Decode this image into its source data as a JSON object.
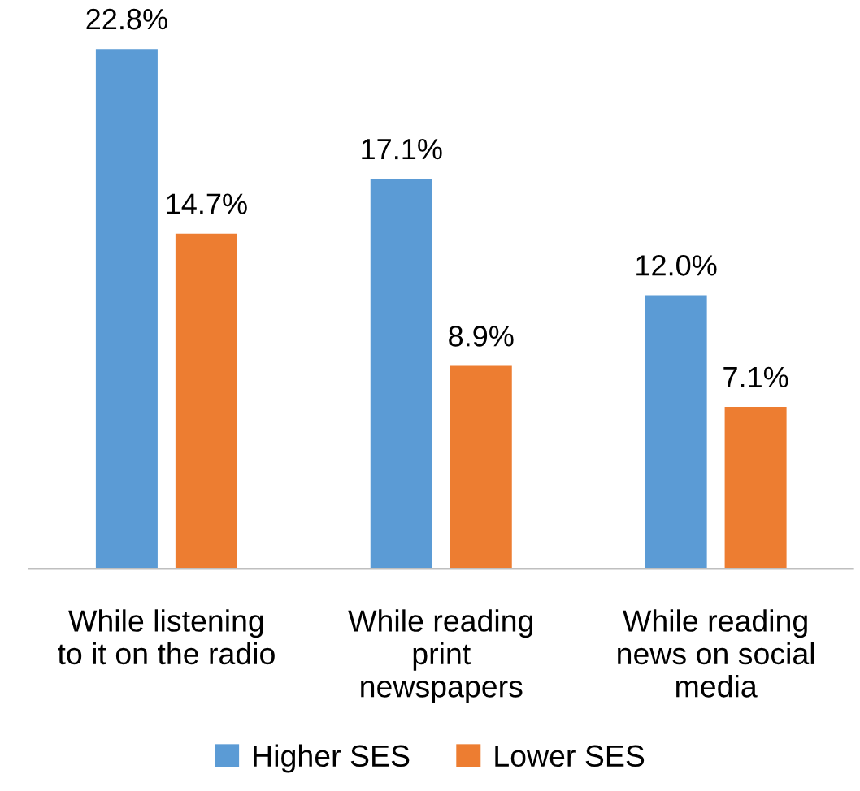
{
  "chart_data": {
    "type": "bar",
    "categories": [
      "While listening\nto it on the radio",
      "While reading\nprint\nnewspapers",
      "While reading\nnews on social\nmedia"
    ],
    "series": [
      {
        "name": "Higher SES",
        "color": "#5b9bd5",
        "values": [
          22.8,
          17.1,
          12.0
        ],
        "value_labels": [
          "22.8%",
          "17.1%",
          "12.0%"
        ]
      },
      {
        "name": "Lower SES",
        "color": "#ed7d31",
        "values": [
          14.7,
          8.9,
          7.1
        ],
        "value_labels": [
          "14.7%",
          "8.9%",
          "7.1%"
        ]
      }
    ],
    "legend": "bottom"
  }
}
